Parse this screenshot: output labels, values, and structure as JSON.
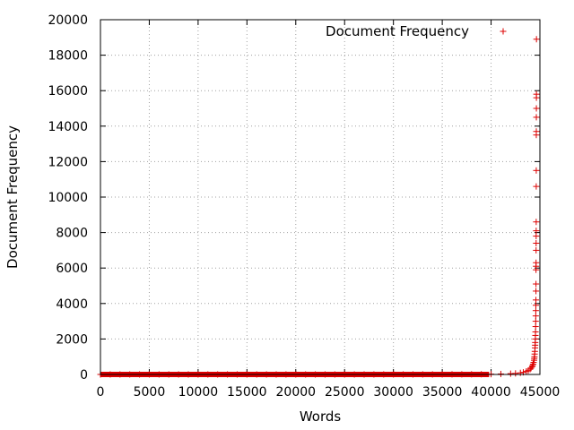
{
  "chart_data": {
    "type": "scatter",
    "title": "",
    "xlabel": "Words",
    "ylabel": "Document Frequency",
    "xlim": [
      0,
      45000
    ],
    "ylim": [
      0,
      20000
    ],
    "x_ticks": [
      "0",
      "5000",
      "10000",
      "15000",
      "20000",
      "25000",
      "30000",
      "35000",
      "40000",
      "45000"
    ],
    "y_ticks": [
      "0",
      "2000",
      "4000",
      "6000",
      "8000",
      "10000",
      "12000",
      "14000",
      "16000",
      "18000",
      "20000"
    ],
    "grid": true,
    "legend": {
      "position": "top-right",
      "label": "Document Frequency",
      "marker": "+",
      "color": "#dd0000"
    },
    "series": [
      {
        "name": "Document Frequency",
        "color": "#dd0000",
        "marker": "+",
        "points": [
          [
            0,
            1
          ],
          [
            1000,
            1
          ],
          [
            2000,
            1
          ],
          [
            3000,
            1
          ],
          [
            4000,
            1
          ],
          [
            5000,
            1
          ],
          [
            6000,
            1
          ],
          [
            7000,
            1
          ],
          [
            8000,
            1
          ],
          [
            9000,
            1
          ],
          [
            10000,
            1
          ],
          [
            11000,
            1
          ],
          [
            12000,
            1
          ],
          [
            13000,
            1
          ],
          [
            14000,
            1
          ],
          [
            15000,
            1
          ],
          [
            16000,
            1
          ],
          [
            17000,
            1
          ],
          [
            18000,
            1
          ],
          [
            19000,
            1
          ],
          [
            20000,
            1
          ],
          [
            21000,
            1
          ],
          [
            22000,
            1
          ],
          [
            23000,
            1
          ],
          [
            24000,
            1
          ],
          [
            25000,
            1
          ],
          [
            26000,
            1
          ],
          [
            27000,
            1
          ],
          [
            28000,
            1
          ],
          [
            29000,
            2
          ],
          [
            30000,
            2
          ],
          [
            31000,
            2
          ],
          [
            32000,
            2
          ],
          [
            33000,
            3
          ],
          [
            34000,
            3
          ],
          [
            35000,
            4
          ],
          [
            36000,
            5
          ],
          [
            37000,
            7
          ],
          [
            38000,
            9
          ],
          [
            39000,
            12
          ],
          [
            40000,
            18
          ],
          [
            41000,
            28
          ],
          [
            42000,
            45
          ],
          [
            42500,
            60
          ],
          [
            43000,
            90
          ],
          [
            43300,
            120
          ],
          [
            43600,
            170
          ],
          [
            43800,
            220
          ],
          [
            44000,
            300
          ],
          [
            44100,
            360
          ],
          [
            44200,
            440
          ],
          [
            44250,
            500
          ],
          [
            44300,
            580
          ],
          [
            44350,
            680
          ],
          [
            44400,
            800
          ],
          [
            44420,
            900
          ],
          [
            44440,
            1000
          ],
          [
            44460,
            1150
          ],
          [
            44480,
            1300
          ],
          [
            44500,
            1500
          ],
          [
            44510,
            1650
          ],
          [
            44520,
            1800
          ],
          [
            44530,
            2000
          ],
          [
            44540,
            2200
          ],
          [
            44550,
            2400
          ],
          [
            44560,
            2700
          ],
          [
            44570,
            3000
          ],
          [
            44575,
            3300
          ],
          [
            44580,
            3600
          ],
          [
            44585,
            3900
          ],
          [
            44590,
            4200
          ],
          [
            44595,
            4700
          ],
          [
            44598,
            5100
          ],
          [
            44600,
            5900
          ],
          [
            44603,
            6100
          ],
          [
            44606,
            6300
          ],
          [
            44609,
            7000
          ],
          [
            44612,
            7400
          ],
          [
            44615,
            7800
          ],
          [
            44618,
            8100
          ],
          [
            44620,
            8600
          ],
          [
            44623,
            10600
          ],
          [
            44626,
            11500
          ],
          [
            44629,
            13500
          ],
          [
            44632,
            13700
          ],
          [
            44635,
            14500
          ],
          [
            44638,
            15000
          ],
          [
            44641,
            15600
          ],
          [
            44644,
            15800
          ],
          [
            44647,
            18900
          ]
        ]
      }
    ]
  }
}
